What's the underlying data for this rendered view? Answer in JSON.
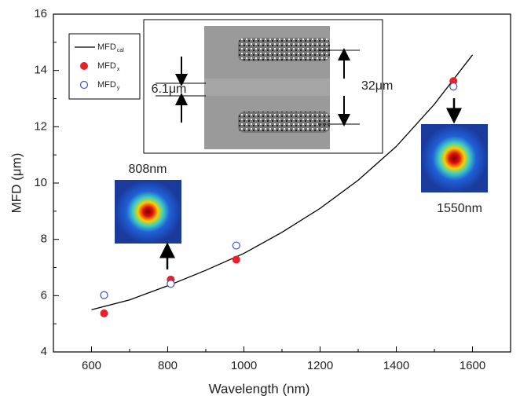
{
  "chart_data": {
    "type": "scatter-line",
    "xlabel": "Wavelength (nm)",
    "ylabel": "MFD (μm)",
    "xlim": [
      500,
      1700
    ],
    "xticks": [
      600,
      800,
      1000,
      1200,
      1400,
      1600
    ],
    "xminorticks": [
      500,
      700,
      900,
      1100,
      1300,
      1500,
      1700
    ],
    "ylim": [
      4,
      16
    ],
    "yticks": [
      4,
      6,
      8,
      10,
      12,
      14,
      16
    ],
    "yminorticks": [
      5,
      7,
      9,
      11,
      13,
      15
    ],
    "series": [
      {
        "name": "MFD",
        "subscript": "cal",
        "kind": "line",
        "color": "#000000",
        "x": [
          600,
          700,
          800,
          900,
          1000,
          1100,
          1200,
          1300,
          1400,
          1500,
          1600
        ],
        "values": [
          5.5,
          5.85,
          6.35,
          6.9,
          7.5,
          8.25,
          9.1,
          10.1,
          11.3,
          12.8,
          14.55
        ]
      },
      {
        "name": "MFD",
        "subscript": "x",
        "kind": "filled",
        "color": "#e8202a",
        "x": [
          633,
          808,
          980,
          1550
        ],
        "values": [
          5.37,
          6.57,
          7.28,
          13.62
        ]
      },
      {
        "name": "MFD",
        "subscript": "y",
        "kind": "open",
        "color": "#3a55c8",
        "x": [
          633,
          808,
          980,
          1550
        ],
        "values": [
          6.02,
          6.42,
          7.78,
          13.43
        ]
      }
    ],
    "annotations": [
      "808nm",
      "1550nm",
      "6.1μm",
      "32μm"
    ]
  }
}
